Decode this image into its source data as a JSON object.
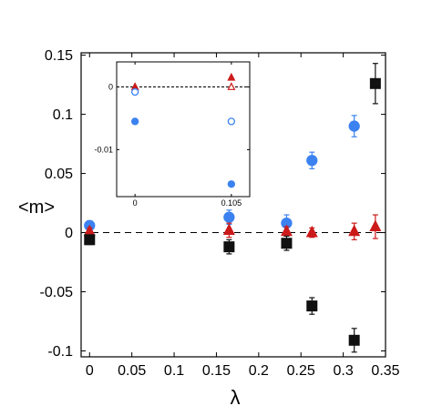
{
  "chart_data": [
    {
      "type": "scatter",
      "title": "",
      "xlabel": "λ",
      "ylabel": "<m>",
      "xlim": [
        -0.01,
        0.35
      ],
      "ylim": [
        -0.105,
        0.152
      ],
      "xticks": [
        0,
        0.05,
        0.1,
        0.15,
        0.2,
        0.25,
        0.3,
        0.35
      ],
      "xtick_labels": [
        "0",
        "0.05",
        "0.1",
        "0.15",
        "0.2",
        "0.25",
        "0.3",
        "0.35"
      ],
      "yticks": [
        -0.1,
        -0.05,
        0,
        0.05,
        0.1,
        0.15
      ],
      "ytick_labels": [
        "-0.1",
        "-0.05",
        "0",
        "0.05",
        "0.1",
        "0.15"
      ],
      "grid": false,
      "reference_line": {
        "y": 0,
        "style": "dashed"
      },
      "series": [
        {
          "marker": "circle",
          "filled": true,
          "color": "#3b82f0",
          "x": [
            0,
            0.165,
            0.233,
            0.263,
            0.313
          ],
          "y": [
            0.006,
            0.013,
            0.008,
            0.061,
            0.09
          ],
          "err": [
            0.004,
            0.006,
            0.007,
            0.007,
            0.009
          ]
        },
        {
          "marker": "triangle",
          "filled": true,
          "color": "#cc1a1a",
          "x": [
            0,
            0.165,
            0.233,
            0.263,
            0.313,
            0.338
          ],
          "y": [
            0.001,
            0.002,
            0.001,
            0.0,
            0.001,
            0.005
          ],
          "err": [
            0.003,
            0.006,
            0.004,
            0.004,
            0.007,
            0.01
          ]
        },
        {
          "marker": "square",
          "filled": true,
          "color": "#111111",
          "x": [
            0,
            0.165,
            0.233,
            0.263,
            0.313,
            0.338
          ],
          "y": [
            -0.006,
            -0.012,
            -0.009,
            -0.062,
            -0.091,
            0.126
          ],
          "err": [
            0.004,
            0.006,
            0.006,
            0.007,
            0.01,
            0.017
          ]
        }
      ]
    },
    {
      "type": "scatter",
      "role": "inset",
      "title": "",
      "xlim": [
        -0.02,
        0.125
      ],
      "ylim": [
        -0.0175,
        0.004
      ],
      "xticks": [
        0,
        0.105
      ],
      "xtick_labels": [
        "0",
        "0.105"
      ],
      "yticks": [
        0,
        -0.01
      ],
      "ytick_labels": [
        "0",
        "-0.01"
      ],
      "reference_line": {
        "y": 0,
        "style": "dashed"
      },
      "series": [
        {
          "marker": "triangle",
          "filled": true,
          "color": "#cc1a1a",
          "x": [
            0,
            0.105
          ],
          "y": [
            0.0,
            0.0015
          ]
        },
        {
          "marker": "triangle",
          "filled": false,
          "color": "#cc1a1a",
          "x": [
            0.105
          ],
          "y": [
            0.0
          ]
        },
        {
          "marker": "circle",
          "filled": false,
          "color": "#3b82f0",
          "x": [
            0,
            0.105
          ],
          "y": [
            -0.0008,
            -0.0055
          ]
        },
        {
          "marker": "circle",
          "filled": true,
          "color": "#3b82f0",
          "x": [
            0,
            0.105
          ],
          "y": [
            -0.0055,
            -0.0155
          ]
        }
      ]
    }
  ]
}
